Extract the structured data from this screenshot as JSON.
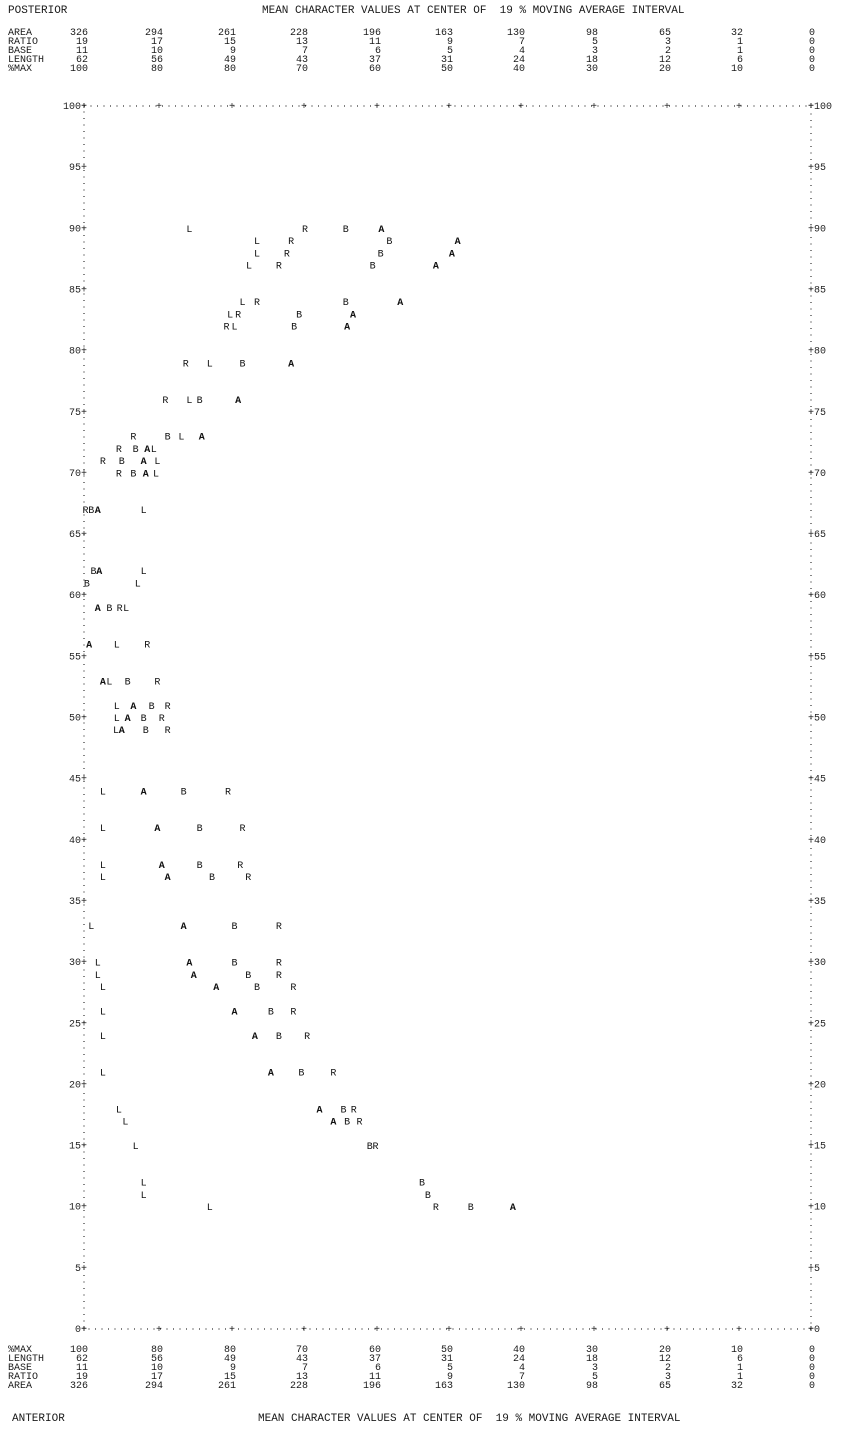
{
  "header": {
    "left_title": "POSTERIOR",
    "center_title": "MEAN CHARACTER VALUES AT CENTER OF  19 % MOVING AVERAGE INTERVAL"
  },
  "footer": {
    "left_title": "ANTERIOR",
    "center_title": "MEAN CHARACTER VALUES AT CENTER OF  19 % MOVING AVERAGE INTERVAL"
  },
  "top_scales": [
    {
      "label": "AREA",
      "values": [
        "326",
        "294",
        "261",
        "228",
        "196",
        "163",
        "130",
        "98",
        "65",
        "32",
        "0"
      ]
    },
    {
      "label": "RATIO",
      "values": [
        "19",
        "17",
        "15",
        "13",
        "11",
        "9",
        "7",
        "5",
        "3",
        "1",
        "0"
      ]
    },
    {
      "label": "BASE",
      "values": [
        "11",
        "10",
        "9",
        "7",
        "6",
        "5",
        "4",
        "3",
        "2",
        "1",
        "0"
      ]
    },
    {
      "label": "LENGTH",
      "values": [
        "62",
        "56",
        "49",
        "43",
        "37",
        "31",
        "24",
        "18",
        "12",
        "6",
        "0"
      ]
    },
    {
      "label": "%MAX",
      "values": [
        "100",
        "80",
        "80",
        "70",
        "60",
        "50",
        "40",
        "30",
        "20",
        "10",
        "0"
      ]
    }
  ],
  "bottom_scales": [
    {
      "label": "%MAX",
      "values": [
        "100",
        "80",
        "80",
        "70",
        "60",
        "50",
        "40",
        "30",
        "20",
        "10",
        "0"
      ]
    },
    {
      "label": "LENGTH",
      "values": [
        "62",
        "56",
        "49",
        "43",
        "37",
        "31",
        "24",
        "18",
        "12",
        "6",
        "0"
      ]
    },
    {
      "label": "BASE",
      "values": [
        "11",
        "10",
        "9",
        "7",
        "6",
        "5",
        "4",
        "3",
        "2",
        "1",
        "0"
      ]
    },
    {
      "label": "RATIO",
      "values": [
        "19",
        "17",
        "15",
        "13",
        "11",
        "9",
        "7",
        "5",
        "3",
        "1",
        "0"
      ]
    },
    {
      "label": "AREA",
      "values": [
        "326",
        "294",
        "261",
        "228",
        "196",
        "163",
        "130",
        "98",
        "65",
        "32",
        "0"
      ]
    }
  ],
  "chart_data": {
    "type": "scatter",
    "x_axis": {
      "unit": "%MAX",
      "range": [
        100,
        0
      ]
    },
    "y_axis": {
      "range": [
        0,
        100
      ],
      "ticks_left": [
        "100+",
        "95+",
        "90+",
        "85+",
        "80+",
        "75+",
        "70+",
        "65+",
        "60+",
        "55+",
        "50+",
        "45+",
        "40+",
        "35+",
        "30+",
        "25+",
        "20+",
        "15+",
        "10+",
        "5+",
        "0+"
      ],
      "ticks_right": [
        "+100",
        "+95",
        "+90",
        "+85",
        "+80",
        "+75",
        "+70",
        "+65",
        "+60",
        "+55",
        "+50",
        "+45",
        "+40",
        "+35",
        "+30",
        "+25",
        "+20",
        "+15",
        "+10",
        "+5",
        "+0"
      ]
    },
    "grid": false,
    "series_symbols": [
      "L",
      "R",
      "B",
      "A"
    ],
    "points": [
      {
        "s": "L",
        "x": 85.5,
        "y": 90
      },
      {
        "s": "R",
        "x": 69.6,
        "y": 90
      },
      {
        "s": "B",
        "x": 64.0,
        "y": 90
      },
      {
        "s": "A",
        "x": 59.1,
        "y": 90
      },
      {
        "s": "L",
        "x": 76.2,
        "y": 89
      },
      {
        "s": "R",
        "x": 71.5,
        "y": 89
      },
      {
        "s": "B",
        "x": 58.0,
        "y": 89
      },
      {
        "s": "A",
        "x": 48.6,
        "y": 89
      },
      {
        "s": "L",
        "x": 76.2,
        "y": 88
      },
      {
        "s": "R",
        "x": 72.1,
        "y": 88
      },
      {
        "s": "B",
        "x": 59.2,
        "y": 88
      },
      {
        "s": "A",
        "x": 49.4,
        "y": 88
      },
      {
        "s": "L",
        "x": 77.3,
        "y": 87
      },
      {
        "s": "R",
        "x": 73.2,
        "y": 87
      },
      {
        "s": "B",
        "x": 60.3,
        "y": 87
      },
      {
        "s": "A",
        "x": 51.6,
        "y": 87
      },
      {
        "s": "L",
        "x": 78.2,
        "y": 84
      },
      {
        "s": "R",
        "x": 76.2,
        "y": 84
      },
      {
        "s": "B",
        "x": 64.0,
        "y": 84
      },
      {
        "s": "A",
        "x": 56.5,
        "y": 84
      },
      {
        "s": "L",
        "x": 79.9,
        "y": 83
      },
      {
        "s": "R",
        "x": 78.8,
        "y": 83
      },
      {
        "s": "B",
        "x": 70.4,
        "y": 83
      },
      {
        "s": "A",
        "x": 63.0,
        "y": 83
      },
      {
        "s": "R",
        "x": 80.4,
        "y": 82
      },
      {
        "s": "L",
        "x": 79.3,
        "y": 82
      },
      {
        "s": "B",
        "x": 71.1,
        "y": 82
      },
      {
        "s": "A",
        "x": 63.8,
        "y": 82
      },
      {
        "s": "R",
        "x": 86.0,
        "y": 79
      },
      {
        "s": "L",
        "x": 82.7,
        "y": 79
      },
      {
        "s": "B",
        "x": 78.2,
        "y": 79
      },
      {
        "s": "A",
        "x": 71.5,
        "y": 79
      },
      {
        "s": "R",
        "x": 88.8,
        "y": 76
      },
      {
        "s": "L",
        "x": 85.5,
        "y": 76
      },
      {
        "s": "B",
        "x": 84.1,
        "y": 76
      },
      {
        "s": "A",
        "x": 78.8,
        "y": 76
      },
      {
        "s": "R",
        "x": 93.2,
        "y": 73
      },
      {
        "s": "B",
        "x": 88.5,
        "y": 73
      },
      {
        "s": "L",
        "x": 86.6,
        "y": 73
      },
      {
        "s": "A",
        "x": 83.8,
        "y": 73
      },
      {
        "s": "R",
        "x": 95.2,
        "y": 72
      },
      {
        "s": "B",
        "x": 92.9,
        "y": 72
      },
      {
        "s": "A",
        "x": 91.3,
        "y": 72
      },
      {
        "s": "L",
        "x": 90.4,
        "y": 72
      },
      {
        "s": "R",
        "x": 97.4,
        "y": 71
      },
      {
        "s": "B",
        "x": 94.8,
        "y": 71
      },
      {
        "s": "A",
        "x": 91.8,
        "y": 71
      },
      {
        "s": "L",
        "x": 89.9,
        "y": 71
      },
      {
        "s": "R",
        "x": 95.2,
        "y": 70
      },
      {
        "s": "B",
        "x": 93.2,
        "y": 70
      },
      {
        "s": "A",
        "x": 91.5,
        "y": 70
      },
      {
        "s": "L",
        "x": 90.1,
        "y": 70
      },
      {
        "s": "R",
        "x": 99.8,
        "y": 67
      },
      {
        "s": "B",
        "x": 99.0,
        "y": 67
      },
      {
        "s": "A",
        "x": 98.1,
        "y": 67
      },
      {
        "s": "L",
        "x": 91.8,
        "y": 67
      },
      {
        "s": "B",
        "x": 98.7,
        "y": 62
      },
      {
        "s": "A",
        "x": 97.9,
        "y": 62
      },
      {
        "s": "L",
        "x": 91.8,
        "y": 62
      },
      {
        "s": "B",
        "x": 99.6,
        "y": 61
      },
      {
        "s": "L",
        "x": 92.6,
        "y": 61
      },
      {
        "s": "A",
        "x": 98.1,
        "y": 59
      },
      {
        "s": "B",
        "x": 96.5,
        "y": 59
      },
      {
        "s": "R",
        "x": 95.1,
        "y": 59
      },
      {
        "s": "L",
        "x": 94.2,
        "y": 59
      },
      {
        "s": "A",
        "x": 99.3,
        "y": 56
      },
      {
        "s": "L",
        "x": 95.5,
        "y": 56
      },
      {
        "s": "R",
        "x": 91.3,
        "y": 56
      },
      {
        "s": "A",
        "x": 97.4,
        "y": 53
      },
      {
        "s": "L",
        "x": 96.5,
        "y": 53
      },
      {
        "s": "B",
        "x": 94.0,
        "y": 53
      },
      {
        "s": "R",
        "x": 89.9,
        "y": 53
      },
      {
        "s": "L",
        "x": 95.5,
        "y": 51
      },
      {
        "s": "A",
        "x": 93.2,
        "y": 51
      },
      {
        "s": "B",
        "x": 90.7,
        "y": 51
      },
      {
        "s": "R",
        "x": 88.5,
        "y": 51
      },
      {
        "s": "L",
        "x": 95.5,
        "y": 50
      },
      {
        "s": "A",
        "x": 94.0,
        "y": 50
      },
      {
        "s": "B",
        "x": 91.8,
        "y": 50
      },
      {
        "s": "R",
        "x": 89.3,
        "y": 50
      },
      {
        "s": "L",
        "x": 95.6,
        "y": 49
      },
      {
        "s": "A",
        "x": 94.8,
        "y": 49
      },
      {
        "s": "B",
        "x": 91.5,
        "y": 49
      },
      {
        "s": "R",
        "x": 88.5,
        "y": 49
      },
      {
        "s": "L",
        "x": 97.4,
        "y": 44
      },
      {
        "s": "A",
        "x": 91.8,
        "y": 44
      },
      {
        "s": "B",
        "x": 86.3,
        "y": 44
      },
      {
        "s": "R",
        "x": 80.2,
        "y": 44
      },
      {
        "s": "L",
        "x": 97.4,
        "y": 41
      },
      {
        "s": "A",
        "x": 89.9,
        "y": 41
      },
      {
        "s": "B",
        "x": 84.1,
        "y": 41
      },
      {
        "s": "R",
        "x": 78.2,
        "y": 41
      },
      {
        "s": "L",
        "x": 97.4,
        "y": 38
      },
      {
        "s": "A",
        "x": 89.3,
        "y": 38
      },
      {
        "s": "B",
        "x": 84.1,
        "y": 38
      },
      {
        "s": "R",
        "x": 78.5,
        "y": 38
      },
      {
        "s": "L",
        "x": 97.4,
        "y": 37
      },
      {
        "s": "A",
        "x": 88.5,
        "y": 37
      },
      {
        "s": "B",
        "x": 82.4,
        "y": 37
      },
      {
        "s": "R",
        "x": 77.4,
        "y": 37
      },
      {
        "s": "L",
        "x": 99.0,
        "y": 33
      },
      {
        "s": "A",
        "x": 86.3,
        "y": 33
      },
      {
        "s": "B",
        "x": 79.3,
        "y": 33
      },
      {
        "s": "R",
        "x": 73.2,
        "y": 33
      },
      {
        "s": "L",
        "x": 98.1,
        "y": 30
      },
      {
        "s": "A",
        "x": 85.5,
        "y": 30
      },
      {
        "s": "B",
        "x": 79.3,
        "y": 30
      },
      {
        "s": "R",
        "x": 73.2,
        "y": 30
      },
      {
        "s": "L",
        "x": 98.1,
        "y": 29
      },
      {
        "s": "A",
        "x": 84.9,
        "y": 29
      },
      {
        "s": "B",
        "x": 77.4,
        "y": 29
      },
      {
        "s": "R",
        "x": 73.2,
        "y": 29
      },
      {
        "s": "L",
        "x": 97.4,
        "y": 28
      },
      {
        "s": "A",
        "x": 81.8,
        "y": 28
      },
      {
        "s": "B",
        "x": 76.2,
        "y": 28
      },
      {
        "s": "R",
        "x": 71.2,
        "y": 28
      },
      {
        "s": "L",
        "x": 97.4,
        "y": 26
      },
      {
        "s": "A",
        "x": 79.3,
        "y": 26
      },
      {
        "s": "B",
        "x": 74.3,
        "y": 26
      },
      {
        "s": "R",
        "x": 71.2,
        "y": 26
      },
      {
        "s": "L",
        "x": 97.4,
        "y": 24
      },
      {
        "s": "A",
        "x": 76.5,
        "y": 24
      },
      {
        "s": "B",
        "x": 73.2,
        "y": 24
      },
      {
        "s": "R",
        "x": 69.3,
        "y": 24
      },
      {
        "s": "L",
        "x": 97.4,
        "y": 21
      },
      {
        "s": "A",
        "x": 74.3,
        "y": 21
      },
      {
        "s": "B",
        "x": 70.1,
        "y": 21
      },
      {
        "s": "R",
        "x": 65.7,
        "y": 21
      },
      {
        "s": "L",
        "x": 95.2,
        "y": 18
      },
      {
        "s": "A",
        "x": 67.6,
        "y": 18
      },
      {
        "s": "B",
        "x": 64.3,
        "y": 18
      },
      {
        "s": "R",
        "x": 62.9,
        "y": 18
      },
      {
        "s": "L",
        "x": 94.3,
        "y": 17
      },
      {
        "s": "A",
        "x": 65.7,
        "y": 17
      },
      {
        "s": "B",
        "x": 63.8,
        "y": 17
      },
      {
        "s": "R",
        "x": 62.1,
        "y": 17
      },
      {
        "s": "L",
        "x": 92.9,
        "y": 15
      },
      {
        "s": "B",
        "x": 60.7,
        "y": 15
      },
      {
        "s": "R",
        "x": 59.9,
        "y": 15
      },
      {
        "s": "L",
        "x": 91.8,
        "y": 12
      },
      {
        "s": "B",
        "x": 53.5,
        "y": 12
      },
      {
        "s": "L",
        "x": 91.8,
        "y": 11
      },
      {
        "s": "B",
        "x": 52.7,
        "y": 11
      },
      {
        "s": "L",
        "x": 82.7,
        "y": 10
      },
      {
        "s": "R",
        "x": 51.6,
        "y": 10
      },
      {
        "s": "B",
        "x": 46.8,
        "y": 10
      },
      {
        "s": "A",
        "x": 41.0,
        "y": 10
      }
    ]
  }
}
